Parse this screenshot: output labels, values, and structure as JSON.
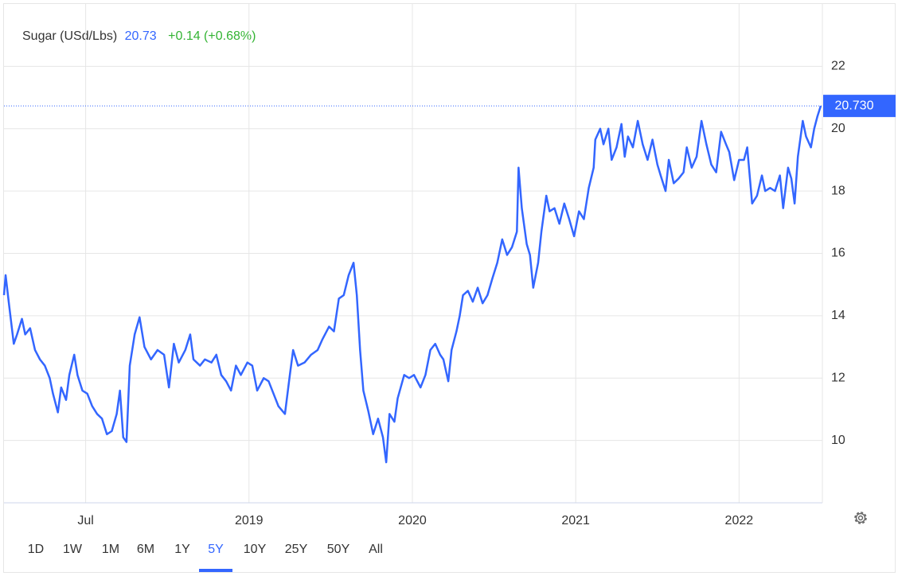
{
  "chart_data": {
    "type": "line",
    "header": {
      "symbol": "Sugar (USd/Lbs)",
      "price": "20.73",
      "change": "+0.14 (+0.68%)"
    },
    "color": "#3366ff",
    "x": [
      2017.5,
      2017.51,
      2017.53,
      2017.56,
      2017.58,
      2017.61,
      2017.63,
      2017.66,
      2017.69,
      2017.72,
      2017.75,
      2017.78,
      2017.8,
      2017.83,
      2017.85,
      2017.88,
      2017.9,
      2017.93,
      2017.95,
      2017.98,
      2018.01,
      2018.04,
      2018.07,
      2018.1,
      2018.13,
      2018.16,
      2018.19,
      2018.21,
      2018.23,
      2018.25,
      2018.27,
      2018.3,
      2018.33,
      2018.36,
      2018.4,
      2018.44,
      2018.48,
      2018.51,
      2018.54,
      2018.57,
      2018.61,
      2018.64,
      2018.66,
      2018.7,
      2018.73,
      2018.77,
      2018.8,
      2018.83,
      2018.86,
      2018.89,
      2018.92,
      2018.95,
      2018.99,
      2019.02,
      2019.05,
      2019.09,
      2019.12,
      2019.15,
      2019.18,
      2019.22,
      2019.25,
      2019.27,
      2019.3,
      2019.34,
      2019.38,
      2019.42,
      2019.45,
      2019.49,
      2019.52,
      2019.55,
      2019.58,
      2019.61,
      2019.64,
      2019.66,
      2019.68,
      2019.7,
      2019.73,
      2019.76,
      2019.79,
      2019.82,
      2019.84,
      2019.86,
      2019.89,
      2019.91,
      2019.95,
      2019.98,
      2020.01,
      2020.05,
      2020.08,
      2020.11,
      2020.14,
      2020.17,
      2020.19,
      2020.22,
      2020.24,
      2020.27,
      2020.29,
      2020.31,
      2020.34,
      2020.37,
      2020.4,
      2020.43,
      2020.46,
      2020.49,
      2020.52,
      2020.55,
      2020.58,
      2020.61,
      2020.64,
      2020.65,
      2020.67,
      2020.7,
      2020.72,
      2020.74,
      2020.77,
      2020.79,
      2020.82,
      2020.84,
      2020.87,
      2020.9,
      2020.93,
      2020.96,
      2020.99,
      2021.02,
      2021.05,
      2021.08,
      2021.11,
      2021.12,
      2021.15,
      2021.17,
      2021.2,
      2021.22,
      2021.25,
      2021.28,
      2021.3,
      2021.32,
      2021.35,
      2021.38,
      2021.41,
      2021.44,
      2021.47,
      2021.5,
      2021.52,
      2021.55,
      2021.57,
      2021.6,
      2021.63,
      2021.66,
      2021.68,
      2021.71,
      2021.74,
      2021.77,
      2021.8,
      2021.83,
      2021.86,
      2021.89,
      2021.92,
      2021.94,
      2021.97,
      2022.0,
      2022.03,
      2022.05,
      2022.08,
      2022.11,
      2022.14,
      2022.16,
      2022.19,
      2022.22,
      2022.25,
      2022.27,
      2022.3,
      2022.32,
      2022.34,
      2022.36,
      2022.39,
      2022.41,
      2022.44,
      2022.46,
      2022.48,
      2022.5
    ],
    "values": [
      14.66,
      15.3,
      14.4,
      13.1,
      13.4,
      13.9,
      13.4,
      13.6,
      12.9,
      12.6,
      12.4,
      12.0,
      11.5,
      10.9,
      11.7,
      11.3,
      12.1,
      12.75,
      12.1,
      11.6,
      11.5,
      11.1,
      10.85,
      10.7,
      10.2,
      10.3,
      10.85,
      11.6,
      10.1,
      9.95,
      12.4,
      13.4,
      13.95,
      13.0,
      12.6,
      12.9,
      12.75,
      11.7,
      13.1,
      12.5,
      12.9,
      13.4,
      12.6,
      12.4,
      12.6,
      12.5,
      12.75,
      12.1,
      11.9,
      11.6,
      12.4,
      12.1,
      12.5,
      12.4,
      11.6,
      12.0,
      11.9,
      11.5,
      11.1,
      10.85,
      12.1,
      12.9,
      12.4,
      12.5,
      12.75,
      12.9,
      13.25,
      13.65,
      13.5,
      14.55,
      14.66,
      15.3,
      15.7,
      14.66,
      12.9,
      11.6,
      10.95,
      10.2,
      10.7,
      10.1,
      9.3,
      10.85,
      10.6,
      11.35,
      12.1,
      12.0,
      12.1,
      11.7,
      12.1,
      12.9,
      13.1,
      12.75,
      12.6,
      11.9,
      12.9,
      13.5,
      14.0,
      14.66,
      14.8,
      14.45,
      14.9,
      14.4,
      14.66,
      15.2,
      15.7,
      16.45,
      15.95,
      16.2,
      16.7,
      18.75,
      17.45,
      16.3,
      15.95,
      14.9,
      15.7,
      16.7,
      17.85,
      17.35,
      17.45,
      16.95,
      17.6,
      17.1,
      16.55,
      17.35,
      17.1,
      18.1,
      18.75,
      19.65,
      20.0,
      19.5,
      20.0,
      19.0,
      19.4,
      20.15,
      19.1,
      19.75,
      19.4,
      20.25,
      19.5,
      19.0,
      19.65,
      18.85,
      18.5,
      18.0,
      19.0,
      18.25,
      18.4,
      18.6,
      19.4,
      18.75,
      19.1,
      20.25,
      19.5,
      18.85,
      18.6,
      19.9,
      19.5,
      19.25,
      18.35,
      19.0,
      19.0,
      19.4,
      17.6,
      17.85,
      18.5,
      18.0,
      18.1,
      18.0,
      18.5,
      17.45,
      18.75,
      18.4,
      17.6,
      19.1,
      20.25,
      19.75,
      19.4,
      20.0,
      20.4,
      20.73
    ],
    "xlim": [
      2017.5,
      2022.51
    ],
    "xticks": [
      {
        "value": 2018,
        "label": "Jul"
      },
      2019,
      2020,
      2021,
      2022
    ],
    "ylim": [
      8,
      24
    ],
    "yticks": [
      10,
      12,
      14,
      16,
      18,
      20,
      22
    ],
    "grid": true,
    "last_price": {
      "value": 20.73,
      "label": "20.730"
    },
    "ranges": [
      "1D",
      "1W",
      "1M",
      "6M",
      "1Y",
      "5Y",
      "10Y",
      "25Y",
      "50Y",
      "All"
    ],
    "active_range": "5Y"
  }
}
